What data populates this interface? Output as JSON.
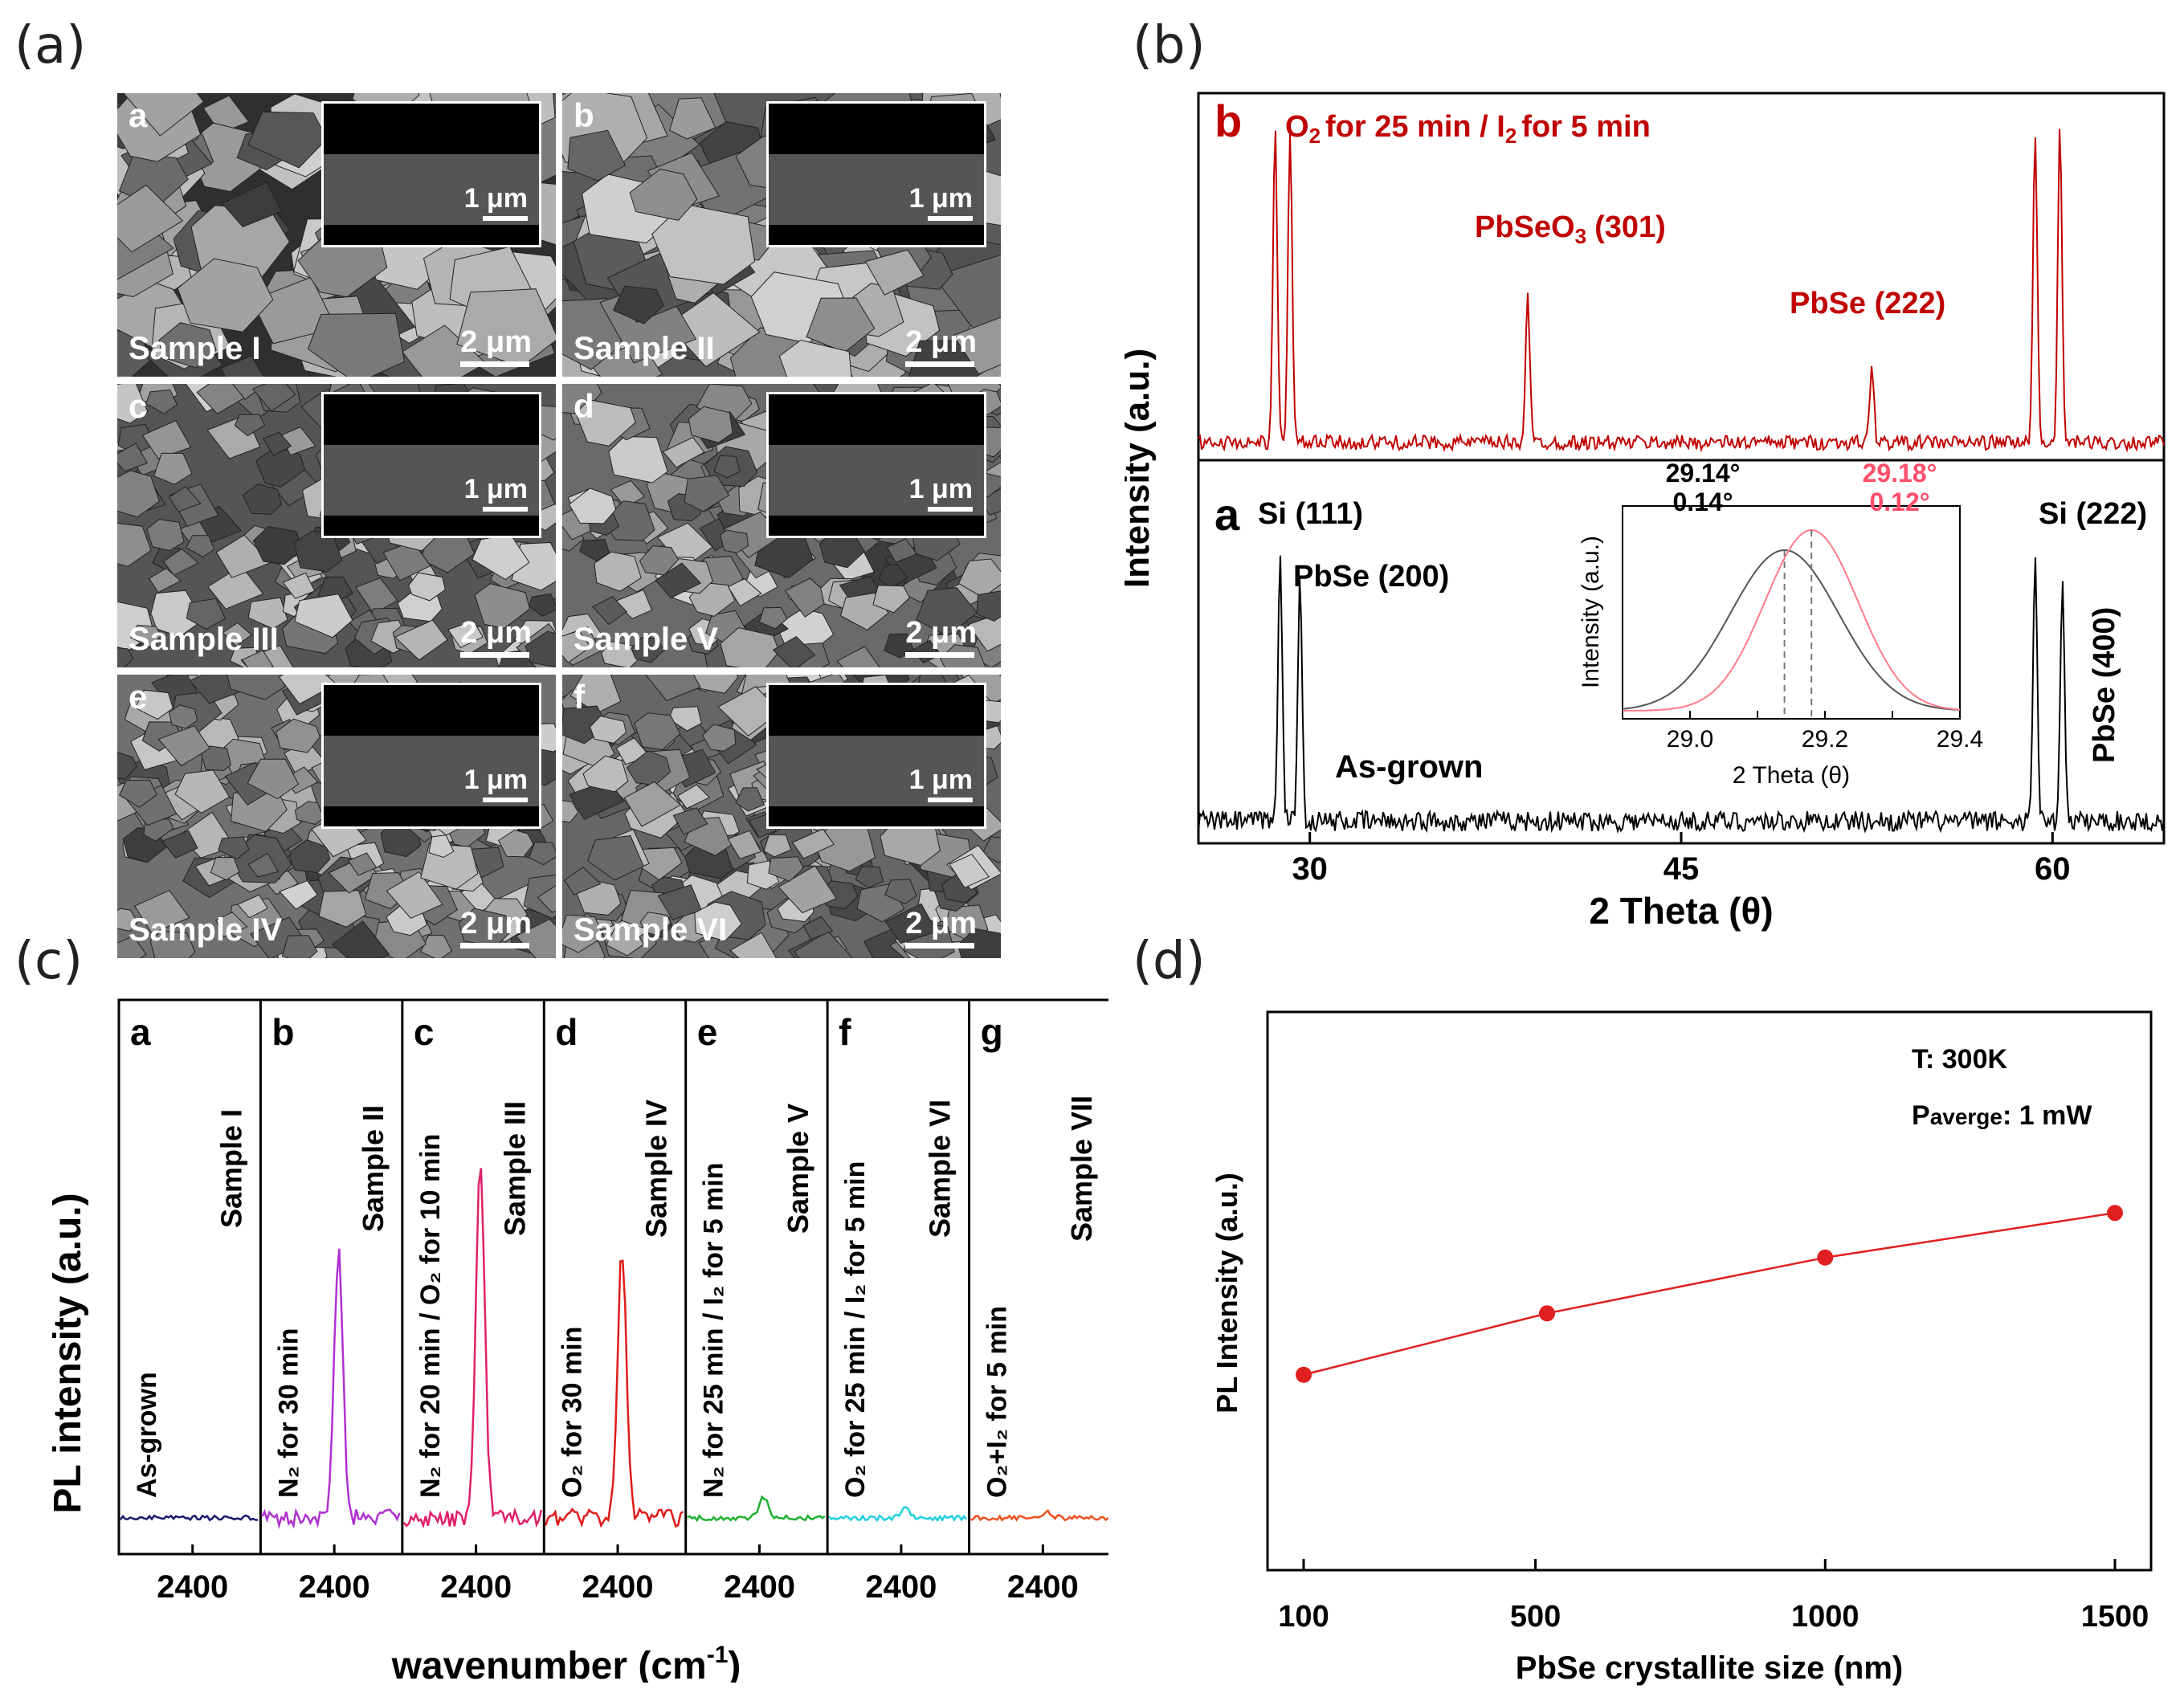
{
  "panel_labels": {
    "a": "(a)",
    "b": "(b)",
    "c": "(c)",
    "d": "(d)"
  },
  "sem": {
    "panels": [
      {
        "letter": "a",
        "sample": "Sample I",
        "scale": "2 μm",
        "inset_scale": "1 μm"
      },
      {
        "letter": "b",
        "sample": "Sample II",
        "scale": "2 μm",
        "inset_scale": "1 μm"
      },
      {
        "letter": "c",
        "sample": "Sample III",
        "scale": "2 μm",
        "inset_scale": "1 μm"
      },
      {
        "letter": "d",
        "sample": "Sample V",
        "scale": "2 μm",
        "inset_scale": "1 μm"
      },
      {
        "letter": "e",
        "sample": "Sample IV",
        "scale": "2 μm",
        "inset_scale": "1 μm"
      },
      {
        "letter": "f",
        "sample": "Sample VI",
        "scale": "2 μm",
        "inset_scale": "1 μm"
      }
    ]
  },
  "chart_data": [
    {
      "id": "xrd",
      "type": "line",
      "xlabel": "2 Theta (θ)",
      "ylabel": "Intensity (a.u.)",
      "xlim": [
        25.5,
        64.5
      ],
      "xticks": [
        30,
        45,
        60
      ],
      "series": [
        {
          "name": "b",
          "label": "O2 for 25 min / I2 for 5 min",
          "color": "#c00000",
          "peaks": [
            {
              "x": 28.6,
              "h": 1.3
            },
            {
              "x": 29.2,
              "h": 1.3
            },
            {
              "x": 38.8,
              "h": 0.62
            },
            {
              "x": 52.7,
              "h": 0.32
            },
            {
              "x": 59.3,
              "h": 1.3
            },
            {
              "x": 60.3,
              "h": 1.3
            }
          ]
        },
        {
          "name": "a",
          "label": "As-grown",
          "color": "#000000",
          "peaks": [
            {
              "x": 28.8,
              "h": 0.82
            },
            {
              "x": 29.6,
              "h": 0.72
            },
            {
              "x": 59.3,
              "h": 0.8
            },
            {
              "x": 60.4,
              "h": 0.7
            }
          ]
        }
      ],
      "annotations": {
        "b_letter": "b",
        "b_title_o2": "O",
        "b_title_sub1": "2",
        "b_title_mid": "for 25 min / I",
        "b_title_sub2": "2",
        "b_title_end": "for 5 min",
        "pbseo3": "PbSeO",
        "pbseo3_sub": "3",
        "pbseo3_hkl": "(301)",
        "pbse222": "PbSe (222)",
        "a_letter": "a",
        "si111": "Si (111)",
        "pbse200": "PbSe (200)",
        "asgrown": "As-grown",
        "si222": "Si (222)",
        "pbse400": "PbSe (400)"
      },
      "inset": {
        "xlabel": "2 Theta (θ)",
        "ylabel": "Intensity (a.u.)",
        "xlim": [
          28.9,
          29.4
        ],
        "xticks": [
          "29.0",
          "29.1",
          "29.2",
          "29.3",
          "29.4"
        ],
        "black": {
          "center": 29.14,
          "fwhm": 0.14,
          "label_pos": "29.14°",
          "label_w": "0.14°"
        },
        "red": {
          "center": 29.18,
          "fwhm": 0.12,
          "label_pos": "29.18°",
          "label_w": "0.12°"
        }
      }
    },
    {
      "id": "pl_spectra",
      "type": "line",
      "ylabel": "PL intensity (a.u.)",
      "xlabel": "wavenumber (cm",
      "xlabel_sup": "-1",
      "xlabel_end": ")",
      "tick": "2400",
      "panels": [
        {
          "letter": "a",
          "sample": "Sample I",
          "condition": "As-grown",
          "color": "#1a1a6e",
          "peak": 0.0
        },
        {
          "letter": "b",
          "sample": "Sample II",
          "condition": "N₂ for 30 min",
          "color": "#b030d0",
          "peak": 0.75
        },
        {
          "letter": "c",
          "sample": "Sample III",
          "condition": "N₂ for 20 min / O₂ for 10 min",
          "color": "#e0206a",
          "peak": 1.0
        },
        {
          "letter": "d",
          "sample": "Sample IV",
          "condition": "O₂ for 30 min",
          "color": "#e01a1a",
          "peak": 0.75
        },
        {
          "letter": "e",
          "sample": "Sample V",
          "condition": "N₂ for 25 min / I₂ for 5 min",
          "color": "#20b030",
          "peak": 0.06
        },
        {
          "letter": "f",
          "sample": "Sample VI",
          "condition": "O₂ for 25 min / I₂ for 5 min",
          "color": "#20d0e0",
          "peak": 0.03
        },
        {
          "letter": "g",
          "sample": "Sample VII",
          "condition": "O₂+I₂ for 5 min",
          "color": "#f05020",
          "peak": 0.02
        }
      ]
    },
    {
      "id": "pl_vs_size",
      "type": "scatter",
      "xlabel": "PbSe crystallite size (nm)",
      "ylabel": "PL Intensity (a.u.)",
      "x": [
        100,
        520,
        1000,
        1500
      ],
      "y": [
        0.35,
        0.46,
        0.56,
        0.64
      ],
      "xticks": [
        "100",
        "500",
        "1000",
        "1500"
      ],
      "xlim": [
        100,
        1500
      ],
      "ylim": [
        0,
        1
      ],
      "color": "#e02020",
      "notes": {
        "temp": "T: 300K",
        "p_main": "P",
        "p_sub": "averge",
        "p_val": ": 1 mW"
      }
    }
  ]
}
